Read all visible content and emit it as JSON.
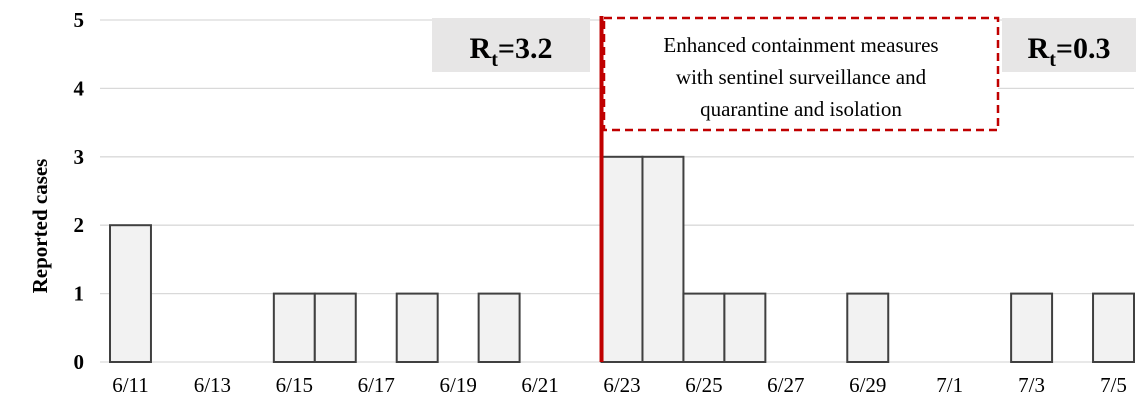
{
  "chart_data": {
    "type": "bar",
    "ylabel": "Reported cases",
    "ylim": [
      0,
      5
    ],
    "yticks": [
      0,
      1,
      2,
      3,
      4,
      5
    ],
    "grid": true,
    "x": [
      "6/11",
      "6/12",
      "6/13",
      "6/14",
      "6/15",
      "6/16",
      "6/17",
      "6/18",
      "6/19",
      "6/20",
      "6/21",
      "6/22",
      "6/23",
      "6/24",
      "6/25",
      "6/26",
      "6/27",
      "6/28",
      "6/29",
      "6/30",
      "7/1",
      "7/2",
      "7/3",
      "7/4",
      "7/5"
    ],
    "x_tick_labels": [
      "6/11",
      "6/13",
      "6/15",
      "6/17",
      "6/19",
      "6/21",
      "6/23",
      "6/25",
      "6/27",
      "6/29",
      "7/1",
      "7/3",
      "7/5"
    ],
    "values": [
      2,
      0,
      0,
      0,
      1,
      1,
      0,
      1,
      0,
      1,
      0,
      0,
      3,
      3,
      1,
      1,
      0,
      0,
      1,
      0,
      0,
      0,
      1,
      0,
      1
    ],
    "bar_color": "#f2f2f2",
    "bar_edge_color": "#404040",
    "intervention_line": {
      "date": "6/23",
      "color": "#c00000"
    },
    "annotations": {
      "rt_before": {
        "base": "R",
        "sub": "t",
        "value": "=3.2"
      },
      "rt_after": {
        "base": "R",
        "sub": "t",
        "value": "=0.3"
      },
      "containment_note": [
        "Enhanced containment measures",
        "with sentinel surveillance and",
        "quarantine and isolation"
      ]
    }
  }
}
